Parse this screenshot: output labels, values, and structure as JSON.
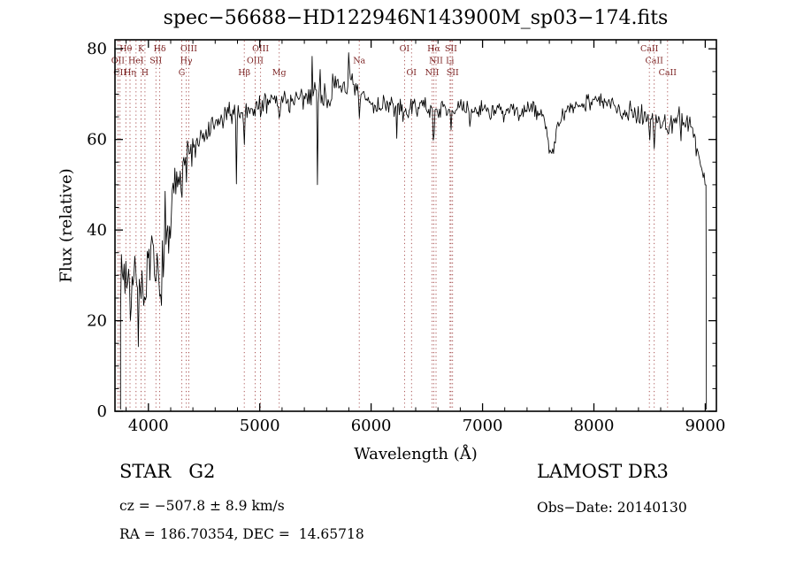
{
  "chart_data": {
    "type": "line",
    "title": "spec−56688−HD122946N143900M_sp03−174.fits",
    "xlabel": "Wavelength (Å)",
    "ylabel": "Flux (relative)",
    "xlim": [
      3700,
      9100
    ],
    "ylim": [
      0,
      82
    ],
    "xticks": [
      4000,
      5000,
      6000,
      7000,
      8000,
      9000
    ],
    "yticks": [
      0,
      20,
      40,
      60,
      80
    ],
    "x_minor_step": 200,
    "y_minor_step": 5,
    "grid": false,
    "line_color": "#000000",
    "marker_color": "#a04040",
    "label_color": "#7a1f1f",
    "sample_step": 8,
    "noise_seed": 7,
    "domain": [
      3750,
      9010
    ],
    "continuum": [
      [
        3750,
        29
      ],
      [
        3800,
        31
      ],
      [
        3850,
        27
      ],
      [
        3900,
        31
      ],
      [
        3950,
        29
      ],
      [
        4000,
        31
      ],
      [
        4040,
        33
      ],
      [
        4080,
        29
      ],
      [
        4120,
        31
      ],
      [
        4160,
        35
      ],
      [
        4200,
        42
      ],
      [
        4240,
        48
      ],
      [
        4280,
        53
      ],
      [
        4320,
        56
      ],
      [
        4360,
        58
      ],
      [
        4400,
        57
      ],
      [
        4450,
        59
      ],
      [
        4500,
        60
      ],
      [
        4550,
        62
      ],
      [
        4600,
        63
      ],
      [
        4650,
        64
      ],
      [
        4700,
        65
      ],
      [
        4750,
        66
      ],
      [
        4800,
        66
      ],
      [
        4861,
        66
      ],
      [
        4900,
        67
      ],
      [
        4950,
        67
      ],
      [
        5000,
        68
      ],
      [
        5050,
        68
      ],
      [
        5100,
        69
      ],
      [
        5175,
        69
      ],
      [
        5250,
        69
      ],
      [
        5300,
        69
      ],
      [
        5350,
        68
      ],
      [
        5400,
        69
      ],
      [
        5450,
        70
      ],
      [
        5500,
        71
      ],
      [
        5550,
        70
      ],
      [
        5600,
        69
      ],
      [
        5650,
        70
      ],
      [
        5700,
        71
      ],
      [
        5750,
        72
      ],
      [
        5800,
        72
      ],
      [
        5850,
        71
      ],
      [
        5893,
        70
      ],
      [
        5950,
        69
      ],
      [
        6000,
        68
      ],
      [
        6050,
        67
      ],
      [
        6100,
        68
      ],
      [
        6150,
        68
      ],
      [
        6200,
        67
      ],
      [
        6250,
        67
      ],
      [
        6300,
        66
      ],
      [
        6350,
        67
      ],
      [
        6400,
        67
      ],
      [
        6450,
        68
      ],
      [
        6500,
        67
      ],
      [
        6563,
        66
      ],
      [
        6650,
        67
      ],
      [
        6700,
        67
      ],
      [
        6750,
        66
      ],
      [
        6800,
        67
      ],
      [
        6900,
        66
      ],
      [
        7000,
        67
      ],
      [
        7100,
        66
      ],
      [
        7200,
        67
      ],
      [
        7300,
        66
      ],
      [
        7400,
        67
      ],
      [
        7500,
        66
      ],
      [
        7550,
        65
      ],
      [
        7600,
        63
      ],
      [
        7650,
        63
      ],
      [
        7700,
        64
      ],
      [
        7750,
        66
      ],
      [
        7800,
        67
      ],
      [
        7900,
        68
      ],
      [
        8000,
        69
      ],
      [
        8100,
        68
      ],
      [
        8200,
        67
      ],
      [
        8300,
        66
      ],
      [
        8400,
        66
      ],
      [
        8500,
        65
      ],
      [
        8550,
        64
      ],
      [
        8600,
        64
      ],
      [
        8662,
        64
      ],
      [
        8700,
        64
      ],
      [
        8750,
        65
      ],
      [
        8800,
        64
      ],
      [
        8850,
        63
      ],
      [
        8900,
        61
      ],
      [
        8940,
        57
      ],
      [
        8970,
        53
      ],
      [
        9010,
        49
      ]
    ],
    "absorption_dips": [
      [
        3835,
        4,
        8
      ],
      [
        3889,
        4,
        8
      ],
      [
        3910,
        12,
        4
      ],
      [
        3934,
        8,
        10
      ],
      [
        3969,
        8,
        10
      ],
      [
        4068,
        4,
        8
      ],
      [
        4102,
        7,
        10
      ],
      [
        4180,
        10,
        4
      ],
      [
        4300,
        4,
        10
      ],
      [
        4340,
        6,
        9
      ],
      [
        4363,
        3,
        8
      ],
      [
        4790,
        16,
        5
      ],
      [
        4861,
        7,
        11
      ],
      [
        4959,
        2,
        8
      ],
      [
        5007,
        2,
        8
      ],
      [
        5065,
        11,
        5
      ],
      [
        5175,
        5,
        20
      ],
      [
        5270,
        3,
        12
      ],
      [
        5520,
        26,
        7
      ],
      [
        5893,
        7,
        11
      ],
      [
        6230,
        7,
        4
      ],
      [
        6300,
        2.5,
        8
      ],
      [
        6363,
        2,
        8
      ],
      [
        6563,
        7,
        11
      ],
      [
        6717,
        2.5,
        8
      ],
      [
        6890,
        9,
        5
      ],
      [
        7190,
        3,
        28
      ],
      [
        7330,
        7,
        5
      ],
      [
        7620,
        6,
        70
      ],
      [
        8498,
        5,
        11
      ],
      [
        8542,
        6,
        11
      ],
      [
        8662,
        5,
        11
      ],
      [
        8780,
        7,
        5
      ]
    ],
    "emission_spikes": [
      [
        3770,
        8,
        5
      ],
      [
        4150,
        9,
        4
      ],
      [
        4240,
        6,
        5
      ],
      [
        5470,
        8,
        6
      ],
      [
        5540,
        9,
        5
      ],
      [
        5655,
        7,
        5
      ],
      [
        5800,
        6,
        9
      ]
    ],
    "noise_segments": [
      [
        3700,
        4230,
        6.5
      ],
      [
        4230,
        4480,
        4.0
      ],
      [
        4480,
        5250,
        2.6
      ],
      [
        5250,
        5950,
        3.0
      ],
      [
        5950,
        6400,
        2.3
      ],
      [
        6400,
        8300,
        2.0
      ],
      [
        8300,
        9100,
        2.6
      ]
    ],
    "line_markers": [
      {
        "label": "Hθ",
        "wl": 3798,
        "row": 1
      },
      {
        "label": "K",
        "wl": 3934,
        "row": 1
      },
      {
        "label": "Hδ",
        "wl": 4102,
        "row": 1
      },
      {
        "label": "OIII",
        "wl": 4363,
        "row": 1
      },
      {
        "label": "OIII",
        "wl": 5007,
        "row": 1
      },
      {
        "label": "OI",
        "wl": 6300,
        "row": 1
      },
      {
        "label": "Hα",
        "wl": 6563,
        "row": 1
      },
      {
        "label": "SII",
        "wl": 6717,
        "row": 1
      },
      {
        "label": "CaII",
        "wl": 8498,
        "row": 1
      },
      {
        "label": "OII",
        "wl": 3727,
        "row": 2
      },
      {
        "label": "HeI",
        "wl": 3889,
        "row": 2
      },
      {
        "label": "SII",
        "wl": 4068,
        "row": 2
      },
      {
        "label": "Hγ",
        "wl": 4340,
        "row": 2
      },
      {
        "label": "OIII",
        "wl": 4959,
        "row": 2
      },
      {
        "label": "Na",
        "wl": 5893,
        "row": 2
      },
      {
        "label": "NII",
        "wl": 6583,
        "row": 2
      },
      {
        "label": "Li",
        "wl": 6708,
        "row": 2
      },
      {
        "label": "CaII",
        "wl": 8542,
        "row": 2
      },
      {
        "label": "CII",
        "wl": 3745,
        "row": 3
      },
      {
        "label": "Hη",
        "wl": 3835,
        "row": 3
      },
      {
        "label": "H",
        "wl": 3969,
        "row": 3
      },
      {
        "label": "G",
        "wl": 4300,
        "row": 3
      },
      {
        "label": "Hβ",
        "wl": 4861,
        "row": 3
      },
      {
        "label": "Mg",
        "wl": 5175,
        "row": 3
      },
      {
        "label": "OI",
        "wl": 6363,
        "row": 3
      },
      {
        "label": "NII",
        "wl": 6548,
        "row": 3
      },
      {
        "label": "SII",
        "wl": 6731,
        "row": 3
      },
      {
        "label": "CaII",
        "wl": 8662,
        "row": 3
      }
    ]
  },
  "footer": {
    "object_class": "STAR   G2",
    "survey": "LAMOST DR3",
    "cz": "cz = −507.8 ± 8.9 km/s",
    "obs_date": "Obs−Date: 20140130",
    "ra_dec": "RA = 186.70354, DEC =  14.65718"
  }
}
